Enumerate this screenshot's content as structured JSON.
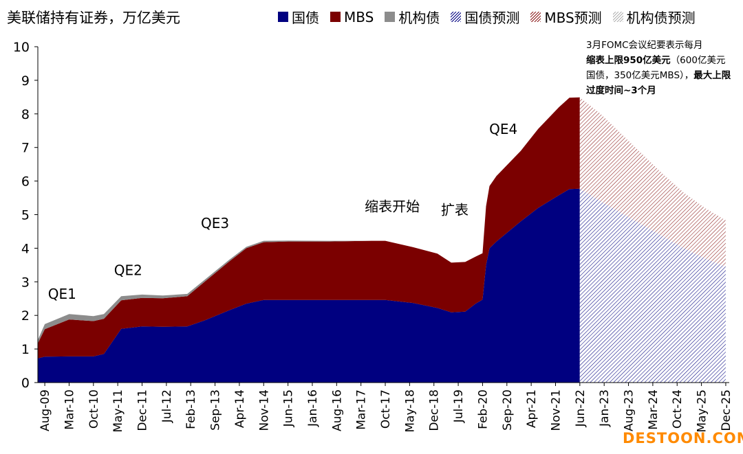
{
  "title": "美联储持有证券，万亿美元",
  "colors": {
    "treasury": "#000080",
    "mbs": "#7b0000",
    "agency": "#8c8c8c",
    "forecast_treasury": "#000080",
    "forecast_mbs": "#8b1a1a",
    "forecast_agency": "#b0b0b0"
  },
  "legend": [
    {
      "label": "国债",
      "style": "solid",
      "color": "#000080",
      "icon": "solid-square-navy"
    },
    {
      "label": "MBS",
      "style": "solid",
      "color": "#7b0000",
      "icon": "solid-square-darkred"
    },
    {
      "label": "机构债",
      "style": "solid",
      "color": "#8c8c8c",
      "icon": "solid-square-gray"
    },
    {
      "label": "国债预测",
      "style": "hatch",
      "color": "#000080",
      "icon": "hatched-square-navy"
    },
    {
      "label": "MBS预测",
      "style": "hatch",
      "color": "#8b1a1a",
      "icon": "hatched-square-darkred"
    },
    {
      "label": "机构债预测",
      "style": "hatch",
      "color": "#b0b0b0",
      "icon": "hatched-square-gray"
    }
  ],
  "note": {
    "line1": "3月FOMC会议纪要表示每月",
    "bold1": "缩表上限950亿美元",
    "line2": "（600亿美元国债，350亿美元MBS），",
    "bold2": "最大上限过度时间~3个月"
  },
  "watermark": "DESTOON.COM",
  "chart_data": {
    "type": "area",
    "stacked": true,
    "x_ticks": [
      "Aug-09",
      "Mar-10",
      "Oct-10",
      "May-11",
      "Dec-11",
      "Jul-12",
      "Feb-13",
      "Sep-13",
      "Apr-14",
      "Nov-14",
      "Jun-15",
      "Jan-16",
      "Aug-16",
      "Mar-17",
      "Oct-17",
      "May-18",
      "Dec-18",
      "Jul-19",
      "Feb-20",
      "Sep-20",
      "Apr-21",
      "Nov-21",
      "Jun-22",
      "Jan-23",
      "Aug-23",
      "Mar-24",
      "Oct-24",
      "May-25",
      "Dec-25"
    ],
    "ylim": [
      0,
      10
    ],
    "y_ticks": [
      0,
      1,
      2,
      3,
      4,
      5,
      6,
      7,
      8,
      9,
      10
    ],
    "grid": false,
    "legend_position": "top",
    "annotations": [
      {
        "text": "QE1",
        "x": "2010-01",
        "y": 2.5
      },
      {
        "text": "QE2",
        "x": "2011-08",
        "y": 3.2
      },
      {
        "text": "QE3",
        "x": "2013-09",
        "y": 4.6
      },
      {
        "text": "缩表开始",
        "x": "2017-12",
        "y": 5.1
      },
      {
        "text": "扩表",
        "x": "2019-06",
        "y": 5.0
      },
      {
        "text": "QE4",
        "x": "2020-08",
        "y": 7.4
      }
    ],
    "series": [
      {
        "name": "国债",
        "kind": "actual",
        "x": [
          "2009-06",
          "2009-08",
          "2010-03",
          "2010-10",
          "2011-01",
          "2011-06",
          "2011-12",
          "2012-06",
          "2013-01",
          "2013-06",
          "2014-01",
          "2014-06",
          "2014-11",
          "2015-06",
          "2016-06",
          "2017-06",
          "2017-10",
          "2018-06",
          "2019-01",
          "2019-05",
          "2019-09",
          "2019-12",
          "2020-02",
          "2020-03",
          "2020-04",
          "2020-06",
          "2021-01",
          "2021-06",
          "2021-12",
          "2022-03",
          "2022-06"
        ],
        "y": [
          0.72,
          0.77,
          0.78,
          0.78,
          0.85,
          1.6,
          1.67,
          1.66,
          1.67,
          1.85,
          2.15,
          2.35,
          2.46,
          2.46,
          2.46,
          2.46,
          2.46,
          2.37,
          2.22,
          2.09,
          2.11,
          2.35,
          2.47,
          3.5,
          4.0,
          4.2,
          4.8,
          5.2,
          5.58,
          5.76,
          5.77
        ]
      },
      {
        "name": "MBS",
        "kind": "actual",
        "x": [
          "2009-06",
          "2009-08",
          "2010-03",
          "2010-10",
          "2011-01",
          "2011-06",
          "2011-12",
          "2012-06",
          "2013-01",
          "2013-06",
          "2014-01",
          "2014-06",
          "2014-11",
          "2015-06",
          "2016-06",
          "2017-06",
          "2017-10",
          "2018-06",
          "2019-01",
          "2019-05",
          "2019-09",
          "2019-12",
          "2020-02",
          "2020-03",
          "2020-04",
          "2020-06",
          "2021-01",
          "2021-06",
          "2021-12",
          "2022-03",
          "2022-06"
        ],
        "y": [
          0.45,
          0.82,
          1.1,
          1.05,
          1.05,
          0.85,
          0.85,
          0.85,
          0.9,
          1.15,
          1.45,
          1.65,
          1.72,
          1.74,
          1.74,
          1.76,
          1.76,
          1.66,
          1.62,
          1.48,
          1.48,
          1.4,
          1.38,
          1.75,
          1.85,
          1.95,
          2.1,
          2.35,
          2.62,
          2.72,
          2.72
        ]
      },
      {
        "name": "机构债",
        "kind": "actual",
        "x": [
          "2009-06",
          "2009-08",
          "2010-03",
          "2010-10",
          "2011-01",
          "2011-06",
          "2011-12",
          "2012-06",
          "2013-01",
          "2013-06",
          "2014-01",
          "2014-06",
          "2014-11",
          "2015-06",
          "2016-06",
          "2017-06",
          "2017-10",
          "2018-06",
          "2019-01",
          "2019-05",
          "2019-09",
          "2019-12",
          "2020-02",
          "2020-03",
          "2020-04",
          "2020-06",
          "2021-01",
          "2021-06",
          "2021-12",
          "2022-03",
          "2022-06"
        ],
        "y": [
          0.1,
          0.15,
          0.16,
          0.15,
          0.14,
          0.12,
          0.1,
          0.08,
          0.07,
          0.06,
          0.05,
          0.04,
          0.04,
          0.03,
          0.02,
          0.0,
          0.0,
          0.0,
          0.0,
          0.0,
          0.0,
          0.0,
          0.0,
          0.0,
          0.0,
          0.0,
          0.0,
          0.0,
          0.0,
          0.0,
          0.0
        ]
      },
      {
        "name": "国债预测",
        "kind": "forecast",
        "x": [
          "2022-06",
          "2022-12",
          "2023-06",
          "2023-12",
          "2024-06",
          "2024-12",
          "2025-06",
          "2025-12"
        ],
        "y": [
          5.77,
          5.4,
          5.05,
          4.7,
          4.35,
          4.0,
          3.7,
          3.45
        ]
      },
      {
        "name": "MBS预测",
        "kind": "forecast",
        "x": [
          "2022-06",
          "2022-12",
          "2023-06",
          "2023-12",
          "2024-06",
          "2024-12",
          "2025-06",
          "2025-12"
        ],
        "y": [
          2.72,
          2.6,
          2.35,
          2.1,
          1.85,
          1.65,
          1.5,
          1.38
        ]
      },
      {
        "name": "机构债预测",
        "kind": "forecast",
        "x": [
          "2022-06",
          "2022-12",
          "2023-06",
          "2023-12",
          "2024-06",
          "2024-12",
          "2025-06",
          "2025-12"
        ],
        "y": [
          0.0,
          0.0,
          0.0,
          0.0,
          0.0,
          0.0,
          0.0,
          0.0
        ]
      }
    ]
  }
}
